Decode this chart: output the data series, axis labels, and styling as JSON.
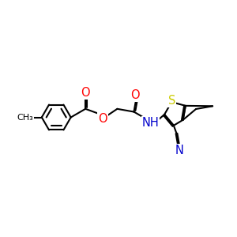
{
  "bg": "#ffffff",
  "bc": "#000000",
  "lw": 1.5,
  "ac": {
    "O": "#ff0000",
    "N": "#0000cc",
    "S": "#cccc00",
    "C": "#000000"
  },
  "fs": 8.5,
  "figsize": [
    3.0,
    3.0
  ],
  "dpi": 100,
  "xlim": [
    -0.5,
    9.5
  ],
  "ylim": [
    2.5,
    7.5
  ]
}
